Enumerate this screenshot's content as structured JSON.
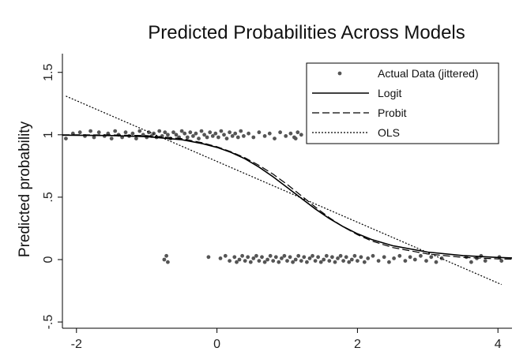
{
  "chart_data": {
    "type": "scatter",
    "title": "Predicted Probabilities Across Models",
    "xlabel": "",
    "ylabel": "Predicted probability",
    "xlim": [
      -2.2,
      4.2
    ],
    "ylim": [
      -0.55,
      1.65
    ],
    "x_ticks": [
      {
        "value": -2,
        "label": "-2"
      },
      {
        "value": 0,
        "label": "0"
      },
      {
        "value": 2,
        "label": "2"
      },
      {
        "value": 4,
        "label": "4"
      }
    ],
    "y_ticks": [
      {
        "value": -0.5,
        "label": "-.5"
      },
      {
        "value": 0,
        "label": "0"
      },
      {
        "value": 0.5,
        "label": ".5"
      },
      {
        "value": 1,
        "label": "1"
      },
      {
        "value": 1.5,
        "label": "1.5"
      }
    ],
    "grid": false,
    "legend_position": "top-right",
    "legend": [
      {
        "label": "Actual Data (jittered)",
        "style": "dot"
      },
      {
        "label": "Logit",
        "style": "solid"
      },
      {
        "label": "Probit",
        "style": "dashed"
      },
      {
        "label": "OLS",
        "style": "dotted"
      }
    ],
    "colors": {
      "points": "#555555",
      "lines": "#000000"
    },
    "series": [
      {
        "name": "Actual Data (jittered)",
        "kind": "points",
        "points": [
          [
            -2.15,
            0.97
          ],
          [
            -2.05,
            1.01
          ],
          [
            -1.95,
            1.02
          ],
          [
            -1.88,
            0.99
          ],
          [
            -1.8,
            1.03
          ],
          [
            -1.75,
            0.98
          ],
          [
            -1.68,
            1.02
          ],
          [
            -1.6,
            0.99
          ],
          [
            -1.55,
            1.01
          ],
          [
            -1.5,
            0.97
          ],
          [
            -1.45,
            1.03
          ],
          [
            -1.4,
            1.0
          ],
          [
            -1.35,
            0.98
          ],
          [
            -1.3,
            1.02
          ],
          [
            -1.25,
            0.99
          ],
          [
            -1.2,
            1.01
          ],
          [
            -1.15,
            0.97
          ],
          [
            -1.1,
            1.03
          ],
          [
            -1.05,
            1.0
          ],
          [
            -1.0,
            0.98
          ],
          [
            -0.97,
            1.02
          ],
          [
            -0.93,
            0.99
          ],
          [
            -0.9,
            1.01
          ],
          [
            -0.86,
            0.98
          ],
          [
            -0.82,
            1.03
          ],
          [
            -0.78,
            0.99
          ],
          [
            -0.74,
            1.02
          ],
          [
            -0.7,
            1.0
          ],
          [
            -0.66,
            0.97
          ],
          [
            -0.62,
            1.02
          ],
          [
            -0.58,
            1.0
          ],
          [
            -0.54,
            0.98
          ],
          [
            -0.5,
            1.03
          ],
          [
            -0.46,
            1.01
          ],
          [
            -0.42,
            0.98
          ],
          [
            -0.38,
            1.02
          ],
          [
            -0.34,
            0.99
          ],
          [
            -0.3,
            1.01
          ],
          [
            -0.26,
            0.97
          ],
          [
            -0.22,
            1.03
          ],
          [
            -0.18,
            1.0
          ],
          [
            -0.14,
            0.98
          ],
          [
            -0.1,
            1.02
          ],
          [
            -0.06,
            0.99
          ],
          [
            -0.02,
            1.01
          ],
          [
            0.02,
            0.98
          ],
          [
            0.06,
            1.03
          ],
          [
            0.1,
            1.0
          ],
          [
            0.14,
            0.97
          ],
          [
            0.18,
            1.02
          ],
          [
            0.22,
            0.99
          ],
          [
            0.26,
            1.01
          ],
          [
            0.3,
            0.98
          ],
          [
            0.34,
            1.03
          ],
          [
            0.38,
            0.99
          ],
          [
            0.45,
            1.01
          ],
          [
            0.52,
            0.98
          ],
          [
            0.6,
            1.02
          ],
          [
            0.68,
            0.99
          ],
          [
            0.75,
            1.01
          ],
          [
            0.82,
            0.97
          ],
          [
            0.9,
            1.02
          ],
          [
            0.98,
            0.99
          ],
          [
            1.05,
            1.01
          ],
          [
            1.1,
            0.98
          ],
          [
            1.15,
            1.02
          ],
          [
            1.2,
            1.0
          ],
          [
            1.12,
            0.97
          ],
          [
            -0.75,
            0.0
          ],
          [
            -0.72,
            0.03
          ],
          [
            -0.7,
            -0.02
          ],
          [
            -0.12,
            0.02
          ],
          [
            0.05,
            0.01
          ],
          [
            0.12,
            0.03
          ],
          [
            0.18,
            -0.01
          ],
          [
            0.25,
            0.02
          ],
          [
            0.28,
            -0.02
          ],
          [
            0.32,
            0.0
          ],
          [
            0.36,
            0.03
          ],
          [
            0.4,
            -0.01
          ],
          [
            0.44,
            0.02
          ],
          [
            0.48,
            -0.02
          ],
          [
            0.52,
            0.01
          ],
          [
            0.56,
            0.03
          ],
          [
            0.6,
            -0.01
          ],
          [
            0.64,
            0.02
          ],
          [
            0.68,
            -0.02
          ],
          [
            0.72,
            0.0
          ],
          [
            0.76,
            0.03
          ],
          [
            0.8,
            -0.01
          ],
          [
            0.84,
            0.02
          ],
          [
            0.88,
            -0.02
          ],
          [
            0.92,
            0.01
          ],
          [
            0.96,
            0.03
          ],
          [
            1.0,
            -0.01
          ],
          [
            1.04,
            0.02
          ],
          [
            1.08,
            -0.02
          ],
          [
            1.12,
            0.0
          ],
          [
            1.16,
            0.03
          ],
          [
            1.2,
            -0.01
          ],
          [
            1.24,
            0.02
          ],
          [
            1.28,
            -0.02
          ],
          [
            1.32,
            0.01
          ],
          [
            1.36,
            0.03
          ],
          [
            1.4,
            -0.01
          ],
          [
            1.44,
            0.02
          ],
          [
            1.48,
            -0.02
          ],
          [
            1.52,
            0.0
          ],
          [
            1.56,
            0.03
          ],
          [
            1.6,
            -0.01
          ],
          [
            1.64,
            0.02
          ],
          [
            1.68,
            -0.02
          ],
          [
            1.72,
            0.01
          ],
          [
            1.76,
            0.03
          ],
          [
            1.8,
            -0.01
          ],
          [
            1.84,
            0.02
          ],
          [
            1.88,
            -0.02
          ],
          [
            1.92,
            0.0
          ],
          [
            1.96,
            0.03
          ],
          [
            2.0,
            -0.01
          ],
          [
            2.05,
            0.02
          ],
          [
            2.1,
            -0.02
          ],
          [
            2.15,
            0.01
          ],
          [
            2.22,
            0.03
          ],
          [
            2.3,
            -0.01
          ],
          [
            2.38,
            0.02
          ],
          [
            2.45,
            -0.02
          ],
          [
            2.52,
            0.01
          ],
          [
            2.6,
            0.03
          ],
          [
            2.68,
            -0.01
          ],
          [
            2.75,
            0.02
          ],
          [
            2.82,
            0.0
          ],
          [
            2.9,
            0.03
          ],
          [
            2.98,
            -0.01
          ],
          [
            3.05,
            0.02
          ],
          [
            3.12,
            -0.02
          ],
          [
            3.2,
            0.01
          ],
          [
            3.55,
            0.02
          ],
          [
            3.62,
            -0.02
          ],
          [
            3.7,
            0.01
          ],
          [
            3.76,
            0.03
          ],
          [
            3.82,
            -0.01
          ],
          [
            4.02,
            0.02
          ],
          [
            4.05,
            -0.01
          ]
        ]
      },
      {
        "name": "Logit",
        "kind": "line",
        "style": "solid",
        "x": [
          -2.2,
          -1.5,
          -1.0,
          -0.5,
          -0.2,
          0.0,
          0.2,
          0.4,
          0.6,
          0.8,
          1.0,
          1.2,
          1.4,
          1.6,
          1.8,
          2.0,
          2.2,
          2.5,
          3.0,
          3.5,
          4.0,
          4.2
        ],
        "y": [
          0.997,
          0.994,
          0.985,
          0.96,
          0.928,
          0.899,
          0.859,
          0.807,
          0.741,
          0.663,
          0.578,
          0.491,
          0.406,
          0.329,
          0.263,
          0.207,
          0.161,
          0.111,
          0.06,
          0.032,
          0.017,
          0.013
        ]
      },
      {
        "name": "Probit",
        "kind": "line",
        "style": "dashed",
        "x": [
          -2.2,
          -1.5,
          -1.0,
          -0.5,
          -0.2,
          0.0,
          0.2,
          0.4,
          0.6,
          0.8,
          1.0,
          1.2,
          1.4,
          1.6,
          1.8,
          2.0,
          2.2,
          2.5,
          3.0,
          3.5,
          4.0,
          4.2
        ],
        "y": [
          1.0,
          0.999,
          0.993,
          0.969,
          0.935,
          0.904,
          0.864,
          0.815,
          0.755,
          0.684,
          0.602,
          0.512,
          0.421,
          0.336,
          0.262,
          0.2,
          0.15,
          0.097,
          0.045,
          0.018,
          0.006,
          0.004
        ]
      },
      {
        "name": "OLS",
        "kind": "line",
        "style": "dotted",
        "x": [
          -2.15,
          4.05
        ],
        "y": [
          1.31,
          -0.2
        ]
      }
    ]
  }
}
